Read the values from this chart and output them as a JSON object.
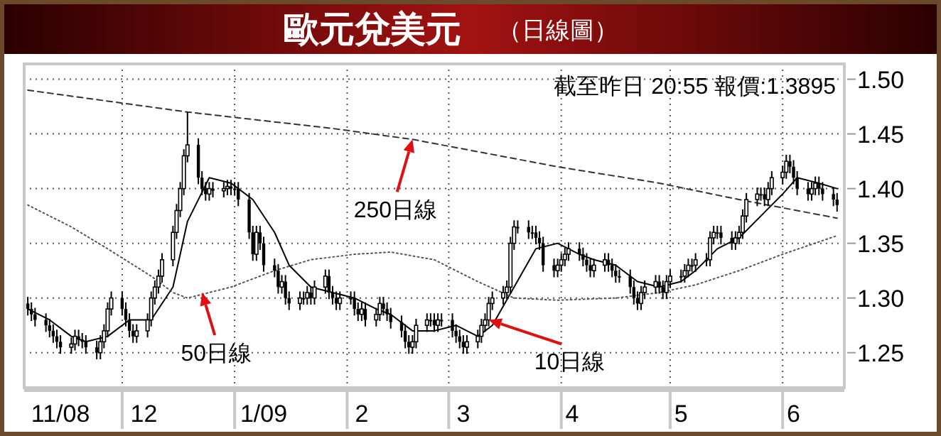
{
  "chart_data": {
    "type": "candlestick",
    "title": "歐元兌美元",
    "subtitle": "（日線圖）",
    "x": [
      "2008-11-05",
      "2008-11-06",
      "2008-11-07",
      "2008-11-10",
      "2008-11-11",
      "2008-11-12",
      "2008-11-13",
      "2008-11-14",
      "2008-11-17",
      "2008-11-18",
      "2008-11-19",
      "2008-11-20",
      "2008-11-21",
      "2008-11-24",
      "2008-11-25",
      "2008-11-26",
      "2008-11-27",
      "2008-11-28",
      "2008-12-01",
      "2008-12-02",
      "2008-12-03",
      "2008-12-04",
      "2008-12-05",
      "2008-12-08",
      "2008-12-09",
      "2008-12-10",
      "2008-12-11",
      "2008-12-12",
      "2008-12-15",
      "2008-12-16",
      "2008-12-17",
      "2008-12-18",
      "2008-12-19",
      "2008-12-22",
      "2008-12-23",
      "2008-12-24",
      "2008-12-25",
      "2008-12-26",
      "2008-12-29",
      "2008-12-30",
      "2008-12-31",
      "2009-01-01",
      "2009-01-02",
      "2009-01-05",
      "2009-01-06",
      "2009-01-07",
      "2009-01-08",
      "2009-01-09",
      "2009-01-12",
      "2009-01-13",
      "2009-01-14",
      "2009-01-15",
      "2009-01-16",
      "2009-01-19",
      "2009-01-20",
      "2009-01-21",
      "2009-01-22",
      "2009-01-23",
      "2009-01-26",
      "2009-01-27",
      "2009-01-28",
      "2009-01-29",
      "2009-01-30",
      "2009-02-02",
      "2009-02-03",
      "2009-02-04",
      "2009-02-05",
      "2009-02-06",
      "2009-02-09",
      "2009-02-10",
      "2009-02-11",
      "2009-02-12",
      "2009-02-13",
      "2009-02-16",
      "2009-02-17",
      "2009-02-18",
      "2009-02-19",
      "2009-02-20",
      "2009-02-23",
      "2009-02-24",
      "2009-02-25",
      "2009-02-26",
      "2009-02-27",
      "2009-03-02",
      "2009-03-03",
      "2009-03-04",
      "2009-03-05",
      "2009-03-06",
      "2009-03-09",
      "2009-03-10",
      "2009-03-11",
      "2009-03-12",
      "2009-03-13",
      "2009-03-16",
      "2009-03-17",
      "2009-03-18",
      "2009-03-19",
      "2009-03-20",
      "2009-03-23",
      "2009-03-24",
      "2009-03-25",
      "2009-03-26",
      "2009-03-27",
      "2009-03-30",
      "2009-03-31",
      "2009-04-01",
      "2009-04-02",
      "2009-04-03",
      "2009-04-06",
      "2009-04-07",
      "2009-04-08",
      "2009-04-09",
      "2009-04-10",
      "2009-04-13",
      "2009-04-14",
      "2009-04-15",
      "2009-04-16",
      "2009-04-17",
      "2009-04-20",
      "2009-04-21",
      "2009-04-22",
      "2009-04-23",
      "2009-04-24",
      "2009-04-27",
      "2009-04-28",
      "2009-04-29",
      "2009-04-30",
      "2009-05-01",
      "2009-05-04",
      "2009-05-05",
      "2009-05-06",
      "2009-05-07",
      "2009-05-08",
      "2009-05-11",
      "2009-05-12",
      "2009-05-13",
      "2009-05-14",
      "2009-05-15",
      "2009-05-18",
      "2009-05-19",
      "2009-05-20",
      "2009-05-21",
      "2009-05-22",
      "2009-05-25",
      "2009-05-26",
      "2009-05-27",
      "2009-05-28",
      "2009-05-29",
      "2009-06-01",
      "2009-06-02",
      "2009-06-03",
      "2009-06-04",
      "2009-06-05",
      "2009-06-08",
      "2009-06-09",
      "2009-06-10",
      "2009-06-11",
      "2009-06-12",
      "2009-06-15",
      "2009-06-16"
    ],
    "ohlc": [
      [
        1.295,
        1.301,
        1.284,
        1.29
      ],
      [
        1.29,
        1.296,
        1.279,
        1.285
      ],
      [
        1.285,
        1.291,
        1.274,
        1.28
      ],
      [
        1.28,
        1.286,
        1.269,
        1.275
      ],
      [
        1.275,
        1.281,
        1.264,
        1.27
      ],
      [
        1.27,
        1.276,
        1.259,
        1.265
      ],
      [
        1.265,
        1.271,
        1.254,
        1.26
      ],
      [
        1.26,
        1.266,
        1.249,
        1.255
      ],
      [
        1.255,
        1.264,
        1.249,
        1.258
      ],
      [
        1.258,
        1.271,
        1.252,
        1.265
      ],
      [
        1.265,
        1.271,
        1.256,
        1.262
      ],
      [
        1.262,
        1.268,
        1.254,
        1.26
      ],
      [
        1.26,
        1.266,
        1.249,
        1.255
      ],
      [
        1.255,
        1.261,
        1.244,
        1.25
      ],
      [
        1.25,
        1.266,
        1.244,
        1.26
      ],
      [
        1.26,
        1.276,
        1.254,
        1.27
      ],
      [
        1.27,
        1.296,
        1.264,
        1.29
      ],
      [
        1.29,
        1.306,
        1.284,
        1.3
      ],
      [
        1.3,
        1.306,
        1.284,
        1.29
      ],
      [
        1.29,
        1.296,
        1.274,
        1.28
      ],
      [
        1.28,
        1.286,
        1.264,
        1.27
      ],
      [
        1.27,
        1.276,
        1.259,
        1.265
      ],
      [
        1.265,
        1.276,
        1.259,
        1.27
      ],
      [
        1.27,
        1.286,
        1.264,
        1.28
      ],
      [
        1.28,
        1.306,
        1.274,
        1.3
      ],
      [
        1.3,
        1.316,
        1.294,
        1.31
      ],
      [
        1.31,
        1.326,
        1.304,
        1.32
      ],
      [
        1.32,
        1.341,
        1.314,
        1.335
      ],
      [
        1.335,
        1.366,
        1.329,
        1.36
      ],
      [
        1.36,
        1.386,
        1.354,
        1.38
      ],
      [
        1.38,
        1.406,
        1.374,
        1.4
      ],
      [
        1.4,
        1.436,
        1.394,
        1.43
      ],
      [
        1.43,
        1.47,
        1.424,
        1.44
      ],
      [
        1.44,
        1.446,
        1.404,
        1.41
      ],
      [
        1.41,
        1.416,
        1.394,
        1.4
      ],
      [
        1.4,
        1.406,
        1.389,
        1.395
      ],
      [
        1.395,
        1.406,
        1.389,
        1.4
      ],
      [
        1.4,
        1.406,
        1.392,
        1.398
      ],
      [
        1.398,
        1.406,
        1.392,
        1.4
      ],
      [
        1.4,
        1.408,
        1.394,
        1.402
      ],
      [
        1.402,
        1.408,
        1.394,
        1.4
      ],
      [
        1.4,
        1.406,
        1.394,
        1.4
      ],
      [
        1.4,
        1.406,
        1.384,
        1.39
      ],
      [
        1.39,
        1.396,
        1.354,
        1.36
      ],
      [
        1.36,
        1.366,
        1.334,
        1.34
      ],
      [
        1.34,
        1.366,
        1.334,
        1.36
      ],
      [
        1.36,
        1.366,
        1.344,
        1.35
      ],
      [
        1.35,
        1.356,
        1.324,
        1.33
      ],
      [
        1.33,
        1.336,
        1.319,
        1.325
      ],
      [
        1.325,
        1.331,
        1.304,
        1.31
      ],
      [
        1.31,
        1.321,
        1.304,
        1.315
      ],
      [
        1.315,
        1.321,
        1.294,
        1.3
      ],
      [
        1.3,
        1.306,
        1.289,
        1.295
      ],
      [
        1.295,
        1.306,
        1.289,
        1.3
      ],
      [
        1.3,
        1.306,
        1.294,
        1.3
      ],
      [
        1.3,
        1.311,
        1.294,
        1.305
      ],
      [
        1.305,
        1.311,
        1.294,
        1.3
      ],
      [
        1.3,
        1.316,
        1.294,
        1.31
      ],
      [
        1.31,
        1.326,
        1.304,
        1.32
      ],
      [
        1.32,
        1.326,
        1.299,
        1.305
      ],
      [
        1.305,
        1.311,
        1.294,
        1.3
      ],
      [
        1.3,
        1.306,
        1.289,
        1.295
      ],
      [
        1.295,
        1.306,
        1.289,
        1.3
      ],
      [
        1.3,
        1.306,
        1.294,
        1.3
      ],
      [
        1.3,
        1.306,
        1.284,
        1.29
      ],
      [
        1.29,
        1.296,
        1.279,
        1.285
      ],
      [
        1.285,
        1.296,
        1.279,
        1.29
      ],
      [
        1.29,
        1.296,
        1.274,
        1.28
      ],
      [
        1.28,
        1.291,
        1.274,
        1.285
      ],
      [
        1.285,
        1.301,
        1.279,
        1.295
      ],
      [
        1.295,
        1.301,
        1.284,
        1.29
      ],
      [
        1.29,
        1.296,
        1.279,
        1.285
      ],
      [
        1.285,
        1.291,
        1.272,
        1.278
      ],
      [
        1.278,
        1.284,
        1.264,
        1.27
      ],
      [
        1.27,
        1.276,
        1.254,
        1.26
      ],
      [
        1.26,
        1.266,
        1.249,
        1.255
      ],
      [
        1.255,
        1.266,
        1.249,
        1.26
      ],
      [
        1.26,
        1.281,
        1.254,
        1.275
      ],
      [
        1.275,
        1.286,
        1.269,
        1.28
      ],
      [
        1.28,
        1.286,
        1.274,
        1.28
      ],
      [
        1.28,
        1.286,
        1.269,
        1.275
      ],
      [
        1.275,
        1.286,
        1.269,
        1.28
      ],
      [
        1.28,
        1.286,
        1.274,
        1.28
      ],
      [
        1.28,
        1.286,
        1.264,
        1.27
      ],
      [
        1.27,
        1.276,
        1.259,
        1.265
      ],
      [
        1.265,
        1.271,
        1.254,
        1.26
      ],
      [
        1.26,
        1.266,
        1.249,
        1.255
      ],
      [
        1.255,
        1.266,
        1.249,
        1.26
      ],
      [
        1.26,
        1.271,
        1.254,
        1.265
      ],
      [
        1.265,
        1.281,
        1.259,
        1.275
      ],
      [
        1.275,
        1.286,
        1.269,
        1.28
      ],
      [
        1.28,
        1.301,
        1.274,
        1.295
      ],
      [
        1.295,
        1.306,
        1.289,
        1.3
      ],
      [
        1.3,
        1.311,
        1.294,
        1.305
      ],
      [
        1.305,
        1.316,
        1.299,
        1.31
      ],
      [
        1.31,
        1.356,
        1.304,
        1.35
      ],
      [
        1.35,
        1.371,
        1.344,
        1.365
      ],
      [
        1.365,
        1.371,
        1.359,
        1.365
      ],
      [
        1.365,
        1.371,
        1.354,
        1.36
      ],
      [
        1.36,
        1.366,
        1.354,
        1.36
      ],
      [
        1.36,
        1.366,
        1.349,
        1.355
      ],
      [
        1.355,
        1.361,
        1.344,
        1.35
      ],
      [
        1.35,
        1.356,
        1.324,
        1.33
      ],
      [
        1.33,
        1.336,
        1.319,
        1.325
      ],
      [
        1.325,
        1.336,
        1.319,
        1.33
      ],
      [
        1.33,
        1.341,
        1.324,
        1.335
      ],
      [
        1.335,
        1.346,
        1.329,
        1.34
      ],
      [
        1.34,
        1.351,
        1.334,
        1.345
      ],
      [
        1.345,
        1.351,
        1.334,
        1.34
      ],
      [
        1.34,
        1.346,
        1.329,
        1.335
      ],
      [
        1.335,
        1.341,
        1.324,
        1.33
      ],
      [
        1.33,
        1.336,
        1.319,
        1.325
      ],
      [
        1.325,
        1.336,
        1.319,
        1.33
      ],
      [
        1.33,
        1.341,
        1.324,
        1.335
      ],
      [
        1.335,
        1.341,
        1.324,
        1.33
      ],
      [
        1.33,
        1.336,
        1.319,
        1.325
      ],
      [
        1.325,
        1.331,
        1.314,
        1.32
      ],
      [
        1.32,
        1.326,
        1.314,
        1.32
      ],
      [
        1.32,
        1.326,
        1.304,
        1.31
      ],
      [
        1.31,
        1.316,
        1.294,
        1.3
      ],
      [
        1.3,
        1.306,
        1.289,
        1.295
      ],
      [
        1.295,
        1.311,
        1.289,
        1.305
      ],
      [
        1.305,
        1.316,
        1.299,
        1.31
      ],
      [
        1.31,
        1.321,
        1.304,
        1.315
      ],
      [
        1.315,
        1.321,
        1.304,
        1.31
      ],
      [
        1.31,
        1.316,
        1.299,
        1.305
      ],
      [
        1.305,
        1.321,
        1.299,
        1.315
      ],
      [
        1.315,
        1.326,
        1.309,
        1.32
      ],
      [
        1.32,
        1.326,
        1.314,
        1.32
      ],
      [
        1.32,
        1.331,
        1.314,
        1.325
      ],
      [
        1.325,
        1.336,
        1.319,
        1.33
      ],
      [
        1.33,
        1.336,
        1.324,
        1.33
      ],
      [
        1.33,
        1.341,
        1.324,
        1.335
      ],
      [
        1.335,
        1.341,
        1.329,
        1.335
      ],
      [
        1.335,
        1.361,
        1.329,
        1.355
      ],
      [
        1.355,
        1.366,
        1.349,
        1.36
      ],
      [
        1.36,
        1.366,
        1.354,
        1.36
      ],
      [
        1.36,
        1.366,
        1.349,
        1.355
      ],
      [
        1.355,
        1.361,
        1.344,
        1.35
      ],
      [
        1.35,
        1.361,
        1.344,
        1.355
      ],
      [
        1.355,
        1.366,
        1.349,
        1.36
      ],
      [
        1.36,
        1.381,
        1.354,
        1.375
      ],
      [
        1.375,
        1.396,
        1.369,
        1.39
      ],
      [
        1.39,
        1.401,
        1.384,
        1.395
      ],
      [
        1.395,
        1.401,
        1.389,
        1.395
      ],
      [
        1.395,
        1.401,
        1.384,
        1.39
      ],
      [
        1.39,
        1.406,
        1.384,
        1.4
      ],
      [
        1.4,
        1.416,
        1.394,
        1.41
      ],
      [
        1.41,
        1.421,
        1.404,
        1.415
      ],
      [
        1.415,
        1.431,
        1.409,
        1.425
      ],
      [
        1.425,
        1.431,
        1.414,
        1.42
      ],
      [
        1.42,
        1.426,
        1.404,
        1.41
      ],
      [
        1.41,
        1.416,
        1.394,
        1.4
      ],
      [
        1.4,
        1.406,
        1.389,
        1.395
      ],
      [
        1.395,
        1.406,
        1.389,
        1.4
      ],
      [
        1.4,
        1.411,
        1.394,
        1.405
      ],
      [
        1.405,
        1.411,
        1.394,
        1.4
      ],
      [
        1.4,
        1.406,
        1.389,
        1.395
      ],
      [
        1.395,
        1.401,
        1.384,
        1.39
      ],
      [
        1.39,
        1.396,
        1.379,
        1.385
      ]
    ],
    "series": [
      {
        "type": "line",
        "color": "#000000",
        "line_style": "solid",
        "x": [
          "2008-11-05",
          "2008-11-11",
          "2008-11-17",
          "2008-11-21",
          "2008-11-27",
          "2008-12-03",
          "2008-12-09",
          "2008-12-15",
          "2008-12-19",
          "2008-12-25",
          "2008-12-31",
          "2009-01-06",
          "2009-01-12",
          "2009-01-16",
          "2009-01-22",
          "2009-01-28",
          "2009-02-03",
          "2009-02-09",
          "2009-02-13",
          "2009-02-19",
          "2009-02-25",
          "2009-03-03",
          "2009-03-09",
          "2009-03-13",
          "2009-03-19",
          "2009-03-25",
          "2009-03-31",
          "2009-04-06",
          "2009-04-10",
          "2009-04-16",
          "2009-04-22",
          "2009-04-28",
          "2009-05-04",
          "2009-05-08",
          "2009-05-14",
          "2009-05-20",
          "2009-05-26",
          "2009-06-01",
          "2009-06-05",
          "2009-06-11",
          "2009-06-16"
        ],
        "values": [
          1.29,
          1.28,
          1.265,
          1.26,
          1.265,
          1.28,
          1.28,
          1.31,
          1.37,
          1.41,
          1.405,
          1.39,
          1.36,
          1.33,
          1.31,
          1.305,
          1.3,
          1.29,
          1.285,
          1.27,
          1.27,
          1.275,
          1.265,
          1.275,
          1.31,
          1.345,
          1.35,
          1.34,
          1.335,
          1.33,
          1.315,
          1.31,
          1.315,
          1.325,
          1.345,
          1.355,
          1.375,
          1.395,
          1.41,
          1.405,
          1.4
        ]
      },
      {
        "type": "line",
        "color": "#555555",
        "line_style": "dotted",
        "x": [
          "2008-11-05",
          "2008-11-17",
          "2008-11-27",
          "2008-12-09",
          "2008-12-15",
          "2008-12-19",
          "2008-12-31",
          "2009-01-12",
          "2009-01-22",
          "2009-02-03",
          "2009-02-13",
          "2009-02-25",
          "2009-03-09",
          "2009-03-19",
          "2009-03-31",
          "2009-04-16",
          "2009-04-28",
          "2009-05-08",
          "2009-05-20",
          "2009-06-01",
          "2009-06-16"
        ],
        "values": [
          1.385,
          1.365,
          1.345,
          1.32,
          1.305,
          1.3,
          1.31,
          1.325,
          1.335,
          1.34,
          1.342,
          1.335,
          1.315,
          1.3,
          1.298,
          1.3,
          1.305,
          1.312,
          1.325,
          1.34,
          1.357
        ]
      },
      {
        "type": "line",
        "color": "#333333",
        "line_style": "dashed",
        "x": [
          "2008-11-05",
          "2008-12-19",
          "2009-01-28",
          "2009-02-19",
          "2009-03-31",
          "2009-04-28",
          "2009-05-20",
          "2009-06-16"
        ],
        "values": [
          1.49,
          1.47,
          1.455,
          1.445,
          1.42,
          1.405,
          1.39,
          1.373
        ]
      }
    ],
    "xlim": [
      "2008-11-04",
      "2009-06-18"
    ],
    "xticks": [
      {
        "value": "2008-11-14",
        "label": "11/08"
      },
      {
        "value": "2008-12-07",
        "label": "12"
      },
      {
        "value": "2009-01-09",
        "label": "1/09"
      },
      {
        "value": "2009-02-05",
        "label": "2"
      },
      {
        "value": "2009-03-05",
        "label": "3"
      },
      {
        "value": "2009-04-04",
        "label": "4"
      },
      {
        "value": "2009-05-04",
        "label": "5"
      },
      {
        "value": "2009-06-04",
        "label": "6"
      }
    ],
    "ylim": [
      1.218,
      1.514
    ],
    "yticks": [
      1.25,
      {
        "value": 1.3,
        "label": "1.30"
      },
      1.35,
      {
        "value": 1.4,
        "label": "1.40"
      },
      1.45,
      {
        "value": 1.5,
        "label": "1.50"
      }
    ],
    "grid": true,
    "annotations": [
      "截至昨日 20:55 報價:1.3895",
      {
        "text": "250日線",
        "x": "2009-02-19",
        "y": 1.445
      },
      {
        "text": "50日線",
        "x": "2008-12-23",
        "y": 1.305
      },
      {
        "text": "10日線",
        "x": "2009-03-12",
        "y": 1.28
      }
    ]
  }
}
